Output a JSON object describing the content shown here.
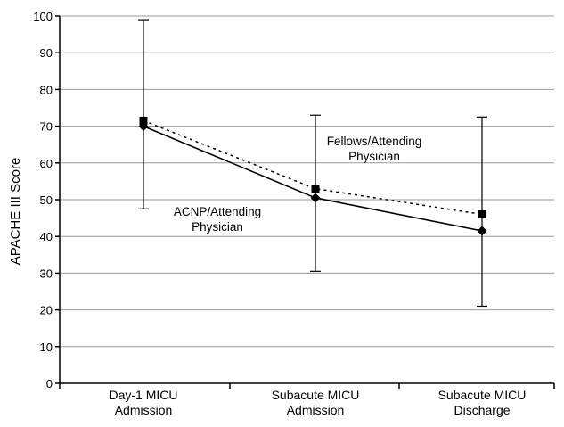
{
  "chart_data": {
    "type": "line",
    "title": "",
    "xlabel": "",
    "ylabel": "APACHE III Score",
    "ylim": [
      0,
      100
    ],
    "yticks": [
      0,
      10,
      20,
      30,
      40,
      50,
      60,
      70,
      80,
      90,
      100
    ],
    "categories": [
      [
        "Day-1 MICU",
        "Admission"
      ],
      [
        "Subacute MICU",
        "Admission"
      ],
      [
        "Subacute MICU",
        "Discharge"
      ]
    ],
    "grid": true,
    "series": [
      {
        "name": "Fellows/Attending Physician",
        "label_lines": [
          "Fellows/Attending",
          "Physician"
        ],
        "line_style": "dotted",
        "marker": "square",
        "values": [
          71.5,
          53,
          46
        ]
      },
      {
        "name": "ACNP/Attending Physician",
        "label_lines": [
          "ACNP/Attending",
          "Physician"
        ],
        "line_style": "solid",
        "marker": "diamond",
        "values": [
          70,
          50.5,
          41.5
        ],
        "error_bars": [
          [
            47.5,
            99
          ],
          [
            30.5,
            73
          ],
          [
            21,
            72.5
          ]
        ]
      }
    ]
  }
}
